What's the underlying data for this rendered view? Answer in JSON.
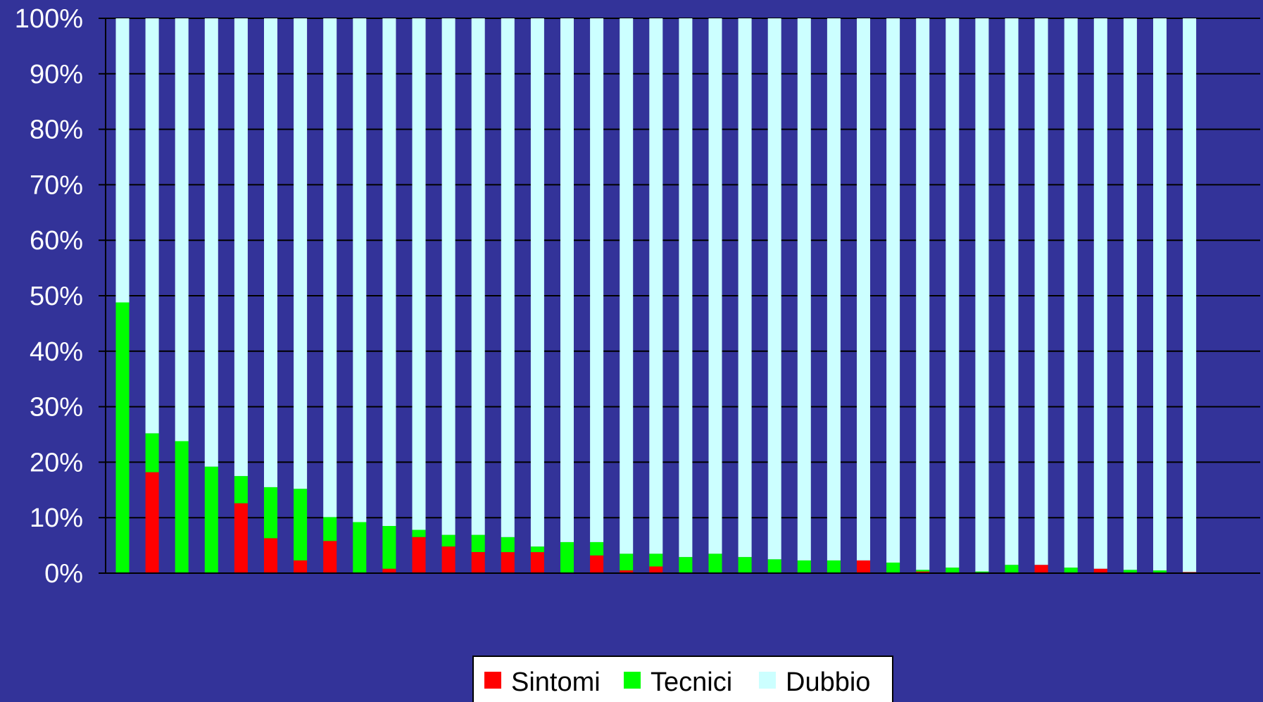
{
  "chart_data": {
    "type": "bar",
    "stacked": true,
    "normalized": true,
    "y_tick_labels": [
      "0%",
      "10%",
      "20%",
      "30%",
      "40%",
      "50%",
      "60%",
      "70%",
      "80%",
      "90%",
      "100%"
    ],
    "ylim": [
      0,
      100
    ],
    "grid": true,
    "legend_position": "bottom-center",
    "series": [
      {
        "name": "Sintomi",
        "color": "#ff0000",
        "values": [
          0,
          18.2,
          0,
          0,
          12.6,
          6.3,
          2.3,
          5.8,
          0,
          0.8,
          6.5,
          4.8,
          3.8,
          3.8,
          3.8,
          0,
          3.2,
          0.5,
          1.2,
          0,
          0,
          0,
          0,
          0,
          0,
          2.3,
          0,
          0.3,
          0,
          0,
          0,
          1.5,
          0,
          0.8,
          0,
          0,
          0.2
        ]
      },
      {
        "name": "Tecnici",
        "color": "#00ff00",
        "values": [
          48.8,
          7,
          23.8,
          19.2,
          4.9,
          9.2,
          12.9,
          4.3,
          9.2,
          7.7,
          1.3,
          2.1,
          3.1,
          2.7,
          1,
          5.6,
          2.4,
          3,
          2.3,
          2.9,
          3.5,
          2.9,
          2.5,
          2.3,
          2.3,
          0,
          1.9,
          0.3,
          1,
          0.3,
          1.5,
          0,
          1,
          0,
          0.6,
          0.5,
          0
        ]
      },
      {
        "name": "Dubbio",
        "color": "#ccffff",
        "values": [
          51.2,
          74.8,
          76.2,
          80.8,
          82.5,
          84.5,
          84.8,
          89.9,
          90.8,
          91.5,
          92.2,
          93.1,
          93.1,
          93.5,
          95.2,
          94.4,
          94.4,
          96.5,
          96.5,
          97.1,
          96.5,
          97.1,
          97.5,
          97.7,
          97.7,
          97.7,
          98.1,
          99.4,
          99,
          99.7,
          98.5,
          98.5,
          99,
          99.2,
          99.4,
          99.5,
          99.8
        ]
      }
    ]
  }
}
